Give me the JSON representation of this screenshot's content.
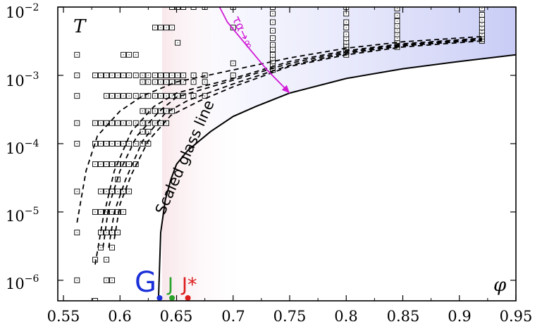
{
  "chart_data": {
    "type": "scatter",
    "x_ticks": [
      "0.55",
      "0.6",
      "0.65",
      "0.7",
      "0.75",
      "0.8",
      "0.85",
      "0.9",
      "0.95"
    ],
    "y_ticks": [
      {
        "base": "10",
        "exp": "−2"
      },
      {
        "base": "10",
        "exp": "−3"
      },
      {
        "base": "10",
        "exp": "−4"
      },
      {
        "base": "10",
        "exp": "−5"
      },
      {
        "base": "10",
        "exp": "−6"
      }
    ],
    "xlim": [
      0.545,
      0.95
    ],
    "ylim": [
      5e-07,
      0.01
    ],
    "yscale": "log",
    "y_var": "T",
    "x_var": "φ",
    "glass_line_label": "Scaled glass line",
    "tau_label": "τα→∞",
    "points_label": {
      "G": "G",
      "J": "J",
      "Jstar": "J*"
    },
    "colors": {
      "G": "#1a2fd8",
      "J": "#2aa32a",
      "Jstar": "#dd1c1c",
      "tau_arrow": "#d11ad6",
      "glass_fill": "#c8ccf5",
      "pink_fill": "#f8e4e8"
    },
    "special_points": [
      {
        "name": "G",
        "x": 0.635,
        "y": 5.5e-07
      },
      {
        "name": "J",
        "x": 0.646,
        "y": 5.5e-07
      },
      {
        "name": "J*",
        "x": 0.66,
        "y": 5.5e-07
      }
    ],
    "glass_line": {
      "x": [
        0.634,
        0.636,
        0.64,
        0.645,
        0.65,
        0.66,
        0.68,
        0.7,
        0.72,
        0.75,
        0.8,
        0.85,
        0.9,
        0.95
      ],
      "y": [
        5e-07,
        5e-06,
        1.5e-05,
        3e-05,
        5e-05,
        8e-05,
        0.00015,
        0.00025,
        0.00035,
        0.00055,
        0.0009,
        0.00125,
        0.0016,
        0.002
      ]
    },
    "dashed_curves": [
      {
        "x": [
          0.562,
          0.57,
          0.58,
          0.6,
          0.62,
          0.65,
          0.7,
          0.75,
          0.8,
          0.85,
          0.92
        ],
        "y": [
          7e-06,
          4e-05,
          0.00013,
          0.0003,
          0.0005,
          0.0008,
          0.0012,
          0.0018,
          0.0025,
          0.0031,
          0.0037
        ]
      },
      {
        "x": [
          0.578,
          0.585,
          0.595,
          0.61,
          0.63,
          0.65,
          0.7,
          0.75,
          0.8,
          0.85,
          0.92
        ],
        "y": [
          1.7e-06,
          8e-06,
          4e-05,
          0.00015,
          0.00035,
          0.00055,
          0.0009,
          0.0016,
          0.0023,
          0.0029,
          0.0035
        ]
      },
      {
        "x": [
          0.585,
          0.59,
          0.6,
          0.615,
          0.635,
          0.65,
          0.7,
          0.75,
          0.8,
          0.85,
          0.92
        ],
        "y": [
          3e-06,
          1.2e-05,
          4e-05,
          0.00013,
          0.0003,
          0.00048,
          0.00085,
          0.0015,
          0.0022,
          0.0028,
          0.0034
        ]
      },
      {
        "x": [
          0.59,
          0.595,
          0.605,
          0.62,
          0.64,
          0.66,
          0.7,
          0.75,
          0.8,
          0.85,
          0.92
        ],
        "y": [
          3e-06,
          1e-05,
          3e-05,
          0.00011,
          0.00028,
          0.00043,
          0.00075,
          0.0014,
          0.0021,
          0.0027,
          0.0033
        ]
      },
      {
        "x": [
          0.595,
          0.6,
          0.61,
          0.625,
          0.645,
          0.67,
          0.7,
          0.75,
          0.8,
          0.85,
          0.92
        ],
        "y": [
          4e-06,
          1.3e-05,
          3.5e-05,
          0.00011,
          0.00026,
          0.00042,
          0.00068,
          0.00135,
          0.002,
          0.0026,
          0.0032
        ]
      }
    ],
    "tau_arrow": {
      "x": [
        0.688,
        0.695,
        0.71,
        0.73,
        0.75
      ],
      "y": [
        0.01,
        0.006,
        0.003,
        0.0012,
        0.00055
      ]
    },
    "series": [
      {
        "x": [
          0.562,
          0.562,
          0.562,
          0.562,
          0.562,
          0.562,
          0.562,
          0.562
        ],
        "y": [
          0.002,
          0.001,
          0.0005,
          0.0001,
          2e-05,
          5e-06,
          1e-06,
          0.0002
        ]
      },
      {
        "x": [
          0.578,
          0.578,
          0.578,
          0.578,
          0.578,
          0.578,
          0.578
        ],
        "y": [
          5e-07,
          2e-06,
          1e-05,
          5e-05,
          0.0001,
          0.001,
          0.0002
        ]
      },
      {
        "x": [
          0.583,
          0.583,
          0.583,
          0.583,
          0.583,
          0.583,
          0.583,
          0.583
        ],
        "y": [
          3e-06,
          5e-06,
          1e-05,
          2e-05,
          5e-05,
          0.0001,
          0.0002,
          0.001
        ]
      },
      {
        "x": [
          0.588,
          0.588,
          0.588,
          0.588,
          0.588,
          0.588,
          0.588,
          0.588,
          0.588,
          0.588
        ],
        "y": [
          1e-06,
          2e-06,
          5e-06,
          1e-05,
          2e-05,
          5e-05,
          0.0001,
          0.0002,
          0.0005,
          0.001
        ]
      },
      {
        "x": [
          0.593,
          0.593,
          0.593,
          0.593,
          0.593,
          0.593,
          0.593,
          0.593,
          0.593,
          0.593
        ],
        "y": [
          1e-06,
          3e-06,
          5e-06,
          1e-05,
          2e-05,
          5e-05,
          0.0001,
          0.0002,
          0.0005,
          0.001
        ]
      },
      {
        "x": [
          0.598,
          0.598,
          0.598,
          0.598,
          0.598,
          0.598,
          0.598,
          0.598,
          0.598
        ],
        "y": [
          5e-06,
          1e-05,
          2e-05,
          3e-05,
          5e-05,
          0.0001,
          0.0002,
          0.0005,
          0.001
        ]
      },
      {
        "x": [
          0.603,
          0.603,
          0.603,
          0.603,
          0.603,
          0.603,
          0.603,
          0.603
        ],
        "y": [
          1e-05,
          2e-05,
          5e-05,
          0.0001,
          0.0002,
          0.0005,
          0.001,
          0.002
        ]
      },
      {
        "x": [
          0.608,
          0.608,
          0.608,
          0.608,
          0.608,
          0.608,
          0.608
        ],
        "y": [
          2e-05,
          5e-05,
          0.0001,
          0.0002,
          0.0005,
          0.001,
          0.002
        ]
      },
      {
        "x": [
          0.614,
          0.614,
          0.614,
          0.614,
          0.614,
          0.614
        ],
        "y": [
          5e-05,
          0.0001,
          0.0002,
          0.0005,
          0.001,
          0.002
        ]
      },
      {
        "x": [
          0.62,
          0.62,
          0.62,
          0.62,
          0.62,
          0.62,
          0.62
        ],
        "y": [
          0.0001,
          0.00015,
          0.0002,
          0.0003,
          0.0005,
          0.0008,
          0.001
        ]
      },
      {
        "x": [
          0.625,
          0.625,
          0.625,
          0.625,
          0.625,
          0.625,
          0.625
        ],
        "y": [
          0.0001,
          0.00015,
          0.0002,
          0.0003,
          0.0005,
          0.0008,
          0.001
        ]
      },
      {
        "x": [
          0.631,
          0.631,
          0.631,
          0.631,
          0.631,
          0.631
        ],
        "y": [
          0.0002,
          0.0003,
          0.0005,
          0.0008,
          0.001,
          0.005
        ]
      },
      {
        "x": [
          0.636,
          0.636,
          0.636,
          0.636,
          0.636,
          0.636
        ],
        "y": [
          0.0002,
          0.0003,
          0.0005,
          0.0008,
          0.001,
          0.005
        ]
      },
      {
        "x": [
          0.641,
          0.641,
          0.641,
          0.641,
          0.641,
          0.641
        ],
        "y": [
          0.0002,
          0.0003,
          0.0005,
          0.0008,
          0.001,
          0.005
        ]
      },
      {
        "x": [
          0.646,
          0.646,
          0.646,
          0.646,
          0.646,
          0.646
        ],
        "y": [
          0.0003,
          0.0005,
          0.0008,
          0.001,
          0.01,
          0.005
        ]
      },
      {
        "x": [
          0.651,
          0.651,
          0.651,
          0.651,
          0.651
        ],
        "y": [
          0.0005,
          0.0008,
          0.001,
          0.01,
          0.003
        ]
      },
      {
        "x": [
          0.656,
          0.656,
          0.656,
          0.656
        ],
        "y": [
          0.0005,
          0.0008,
          0.001,
          0.01
        ]
      },
      {
        "x": [
          0.665,
          0.665,
          0.665,
          0.665
        ],
        "y": [
          0.0005,
          0.0008,
          0.001,
          0.01
        ]
      },
      {
        "x": [
          0.675,
          0.675,
          0.675,
          0.675
        ],
        "y": [
          0.0005,
          0.0008,
          0.001,
          0.01
        ]
      },
      {
        "x": [
          0.7,
          0.7,
          0.7,
          0.7
        ],
        "y": [
          0.001,
          0.0015,
          0.01,
          0.005
        ]
      },
      {
        "x": [
          0.735,
          0.735,
          0.735,
          0.735,
          0.735,
          0.735,
          0.735,
          0.735,
          0.735,
          0.735,
          0.735,
          0.735
        ],
        "y": [
          0.0012,
          0.0014,
          0.0016,
          0.0018,
          0.002,
          0.0024,
          0.0028,
          0.0035,
          0.0045,
          0.006,
          0.008,
          0.01
        ]
      },
      {
        "x": [
          0.8,
          0.8,
          0.8,
          0.8,
          0.8,
          0.8,
          0.8,
          0.8,
          0.8,
          0.8,
          0.8,
          0.8
        ],
        "y": [
          0.002,
          0.0022,
          0.0024,
          0.0026,
          0.0028,
          0.0031,
          0.0035,
          0.004,
          0.005,
          0.006,
          0.008,
          0.01
        ]
      },
      {
        "x": [
          0.845,
          0.845,
          0.845,
          0.845,
          0.845,
          0.845,
          0.845,
          0.845,
          0.845,
          0.845,
          0.845
        ],
        "y": [
          0.0026,
          0.0028,
          0.003,
          0.0032,
          0.0035,
          0.004,
          0.0046,
          0.0053,
          0.0062,
          0.0075,
          0.0095
        ]
      },
      {
        "x": [
          0.92,
          0.92,
          0.92,
          0.92,
          0.92,
          0.92,
          0.92,
          0.92,
          0.92,
          0.92
        ],
        "y": [
          0.0032,
          0.0034,
          0.0037,
          0.004,
          0.0045,
          0.005,
          0.0057,
          0.0065,
          0.0077,
          0.0095
        ]
      }
    ]
  }
}
